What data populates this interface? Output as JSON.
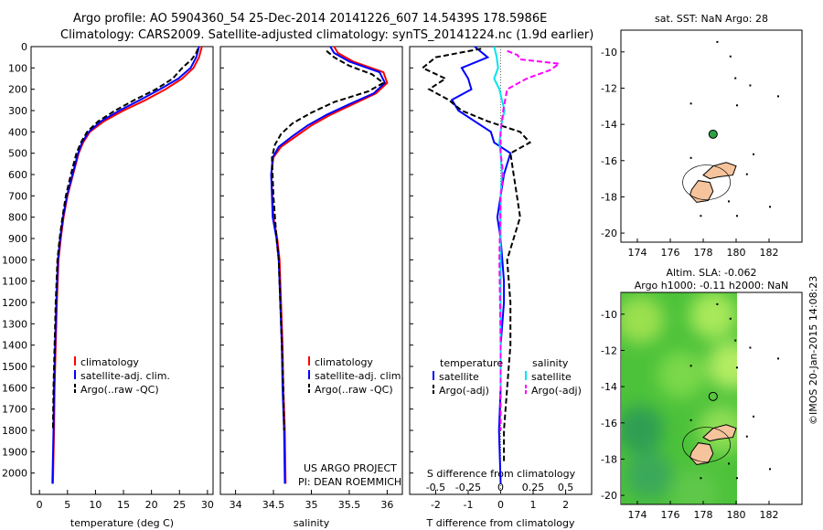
{
  "header": {
    "line1": "Argo profile: AO 5904360_54 25-Dec-2014 20141226_607 14.5439S 178.5986E",
    "line2": "Climatology: CARS2009. Satellite-adjusted climatology: synTS_20141224.nc (1.9d earlier)"
  },
  "side_text": "©IMOS 20-Jan-2015 14:08:23",
  "credits": {
    "line1": "US ARGO PROJECT",
    "line2": "PI: DEAN ROEMMICH"
  },
  "colors": {
    "climatology": "#ff0000",
    "satellite": "#0000ff",
    "argo": "#000000",
    "s_satellite": "#00e5ee",
    "s_argo": "#ff00ff",
    "island": "#f6c49c",
    "sla_green": "#4cc23a"
  },
  "chart_data": [
    {
      "type": "line",
      "panel": "temperature",
      "xlabel": "temperature (deg C)",
      "xlim": [
        -1.5,
        31
      ],
      "xticks": [
        0,
        5,
        10,
        15,
        20,
        25,
        30
      ],
      "ylim": [
        2100,
        0
      ],
      "yticks": [
        0,
        100,
        200,
        300,
        400,
        500,
        600,
        700,
        800,
        900,
        1000,
        1100,
        1200,
        1300,
        1400,
        1500,
        1600,
        1700,
        1800,
        1900,
        2000
      ],
      "legend": [
        "climatology",
        "satellite-adj. clim.",
        "Argo(..raw -QC)"
      ],
      "series": [
        {
          "name": "climatology",
          "color": "#ff0000",
          "dash": "",
          "x": [
            29.0,
            28.8,
            28.5,
            27.5,
            25.5,
            22.5,
            19.0,
            15.0,
            11.5,
            9.0,
            7.8,
            7.0,
            6.0,
            5.0,
            4.3,
            3.8,
            3.4,
            3.1,
            2.9,
            2.7,
            2.6,
            2.4
          ],
          "y": [
            0,
            20,
            50,
            100,
            150,
            200,
            250,
            300,
            350,
            400,
            450,
            500,
            600,
            700,
            800,
            900,
            1000,
            1200,
            1400,
            1600,
            1800,
            2050
          ]
        },
        {
          "name": "satellite-adj. clim.",
          "color": "#0000ff",
          "dash": "",
          "x": [
            28.5,
            28.3,
            28.0,
            27.0,
            24.8,
            21.5,
            18.0,
            14.3,
            11.0,
            8.8,
            7.6,
            6.9,
            5.9,
            4.9,
            4.2,
            3.7,
            3.3,
            3.0,
            2.8,
            2.6,
            2.5,
            2.3
          ],
          "y": [
            0,
            20,
            50,
            100,
            150,
            200,
            250,
            300,
            350,
            400,
            450,
            500,
            600,
            700,
            800,
            900,
            1000,
            1200,
            1400,
            1600,
            1800,
            2050
          ]
        },
        {
          "name": "Argo(..raw -QC)",
          "color": "#000000",
          "dash": "6,3",
          "x": [
            28.3,
            28.0,
            27.2,
            25.5,
            23.8,
            20.8,
            17.0,
            13.5,
            10.5,
            8.5,
            7.4,
            6.6,
            5.6,
            4.7,
            4.1,
            3.6,
            3.2,
            2.9,
            2.7,
            2.5,
            2.4
          ],
          "y": [
            10,
            30,
            60,
            100,
            150,
            200,
            250,
            300,
            350,
            400,
            450,
            500,
            600,
            700,
            800,
            900,
            1000,
            1200,
            1400,
            1600,
            1800
          ]
        }
      ]
    },
    {
      "type": "line",
      "panel": "salinity",
      "xlabel": "salinity",
      "xlim": [
        33.8,
        36.2
      ],
      "xticks": [
        34,
        34.5,
        35,
        35.5,
        36
      ],
      "ylim": [
        2100,
        0
      ],
      "legend": [
        "climatology",
        "satellite-adj. clim.",
        "Argo(..raw -QC)"
      ],
      "series": [
        {
          "name": "climatology",
          "color": "#ff0000",
          "dash": "",
          "x": [
            35.3,
            35.35,
            35.55,
            35.95,
            36.0,
            35.85,
            35.55,
            35.25,
            35.0,
            34.8,
            34.6,
            34.5,
            34.47,
            34.5,
            34.55,
            34.58,
            34.6,
            34.62,
            34.63,
            34.65,
            34.66
          ],
          "y": [
            0,
            30,
            70,
            120,
            170,
            220,
            270,
            320,
            370,
            420,
            470,
            520,
            600,
            800,
            900,
            1000,
            1200,
            1400,
            1600,
            1800,
            2050
          ]
        },
        {
          "name": "satellite-adj. clim.",
          "color": "#0000ff",
          "dash": "",
          "x": [
            35.25,
            35.3,
            35.5,
            35.9,
            35.97,
            35.82,
            35.5,
            35.2,
            34.95,
            34.75,
            34.57,
            34.49,
            34.47,
            34.49,
            34.54,
            34.57,
            34.59,
            34.61,
            34.62,
            34.64,
            34.65
          ],
          "y": [
            0,
            30,
            70,
            120,
            170,
            220,
            270,
            320,
            370,
            420,
            470,
            520,
            600,
            800,
            900,
            1000,
            1200,
            1400,
            1600,
            1800,
            2050
          ]
        },
        {
          "name": "Argo(..raw -QC)",
          "color": "#000000",
          "dash": "6,3",
          "x": [
            35.2,
            35.3,
            35.5,
            35.8,
            35.95,
            35.75,
            35.3,
            35.0,
            34.75,
            34.6,
            34.52,
            34.48,
            34.5,
            34.54,
            34.57,
            34.59,
            34.61,
            34.63,
            34.64
          ],
          "y": [
            20,
            50,
            90,
            130,
            170,
            210,
            260,
            310,
            360,
            410,
            460,
            520,
            700,
            900,
            1000,
            1200,
            1400,
            1600,
            1800
          ]
        }
      ]
    },
    {
      "type": "line",
      "panel": "difference",
      "xlabel": "T difference from climatology",
      "x2label": "S difference from climatology",
      "xlim": [
        -2.8,
        2.8
      ],
      "xticks": [
        -2,
        -1,
        0,
        1,
        2
      ],
      "x2ticks": [
        -0.5,
        -0.25,
        0,
        0.25,
        0.5
      ],
      "x2ticklabels": [
        "-0.5",
        "-0.25",
        "0",
        "0.25",
        "0.5"
      ],
      "ylim": [
        2100,
        0
      ],
      "legend": {
        "temperature": [
          "satellite",
          "Argo(-adj)"
        ],
        "salinity": [
          "satellite",
          "Argo(-adj)"
        ]
      },
      "series": [
        {
          "name": "T satellite",
          "color": "#0000ff",
          "dash": "",
          "x": [
            -0.8,
            -0.4,
            -1.2,
            -1.0,
            -0.9,
            -1.5,
            -1.3,
            -0.8,
            -0.3,
            -0.2,
            0.3,
            0.1,
            0.0,
            -0.1,
            0.0,
            0.05,
            0.1,
            0.1,
            0.0,
            0.0,
            -0.05,
            0.0
          ],
          "y": [
            0,
            50,
            100,
            150,
            200,
            250,
            300,
            350,
            400,
            450,
            500,
            600,
            700,
            800,
            900,
            1000,
            1100,
            1200,
            1400,
            1600,
            1800,
            2050
          ]
        },
        {
          "name": "T Argo(-adj)",
          "color": "#000000",
          "dash": "6,3",
          "x": [
            -0.6,
            -2.0,
            -2.4,
            -1.7,
            -2.2,
            -1.6,
            -1.2,
            -0.4,
            0.6,
            0.9,
            0.3,
            0.4,
            0.5,
            0.6,
            0.4,
            0.2,
            0.3,
            0.3,
            0.2,
            0.1,
            0.1
          ],
          "y": [
            10,
            50,
            100,
            150,
            200,
            250,
            300,
            350,
            400,
            450,
            500,
            600,
            700,
            800,
            900,
            1000,
            1200,
            1400,
            1600,
            1800,
            1950
          ]
        },
        {
          "name": "S satellite",
          "color": "#00e5ee",
          "dash": "",
          "x": [
            -0.05,
            -0.03,
            -0.02,
            -0.05,
            -0.01,
            0.01,
            0.03,
            0.01,
            0.0,
            -0.01,
            0.0,
            0.01,
            0.0,
            0.0,
            0.0,
            0.0
          ],
          "y": [
            0,
            50,
            100,
            150,
            200,
            250,
            300,
            350,
            400,
            450,
            500,
            600,
            700,
            900,
            1200,
            1600
          ]
        },
        {
          "name": "S Argo(-adj)",
          "color": "#ff00ff",
          "dash": "6,3",
          "x": [
            0.05,
            0.13,
            0.15,
            0.45,
            0.38,
            0.2,
            0.05,
            0.02,
            0.0,
            0.0,
            0.02,
            0.0,
            -0.01,
            0.0,
            0.0
          ],
          "y": [
            20,
            40,
            60,
            80,
            110,
            150,
            200,
            300,
            400,
            500,
            600,
            700,
            1000,
            1400,
            1800
          ]
        }
      ]
    },
    {
      "type": "scatter",
      "panel": "sst_map",
      "title": "sat. SST: NaN Argo: 28",
      "xlim": [
        173,
        184
      ],
      "xticks": [
        174,
        176,
        178,
        180,
        182
      ],
      "ylim": [
        -20.5,
        -8.8
      ],
      "yticks": [
        -10,
        -12,
        -14,
        -16,
        -18,
        -20
      ],
      "marker": {
        "lon": 178.6,
        "lat": -14.54,
        "color": "#2ea043"
      }
    },
    {
      "type": "heatmap",
      "panel": "sla_map",
      "title_line1": "Altim. SLA: -0.062",
      "title_line2": "Argo h1000: -0.11 h2000: NaN",
      "xlim": [
        173,
        184
      ],
      "xticks": [
        174,
        176,
        178,
        180,
        182
      ],
      "ylim": [
        -20.5,
        -8.8
      ],
      "yticks": [
        -10,
        -12,
        -14,
        -16,
        -18,
        -20
      ],
      "marker": {
        "lon": 178.6,
        "lat": -14.54
      }
    }
  ]
}
